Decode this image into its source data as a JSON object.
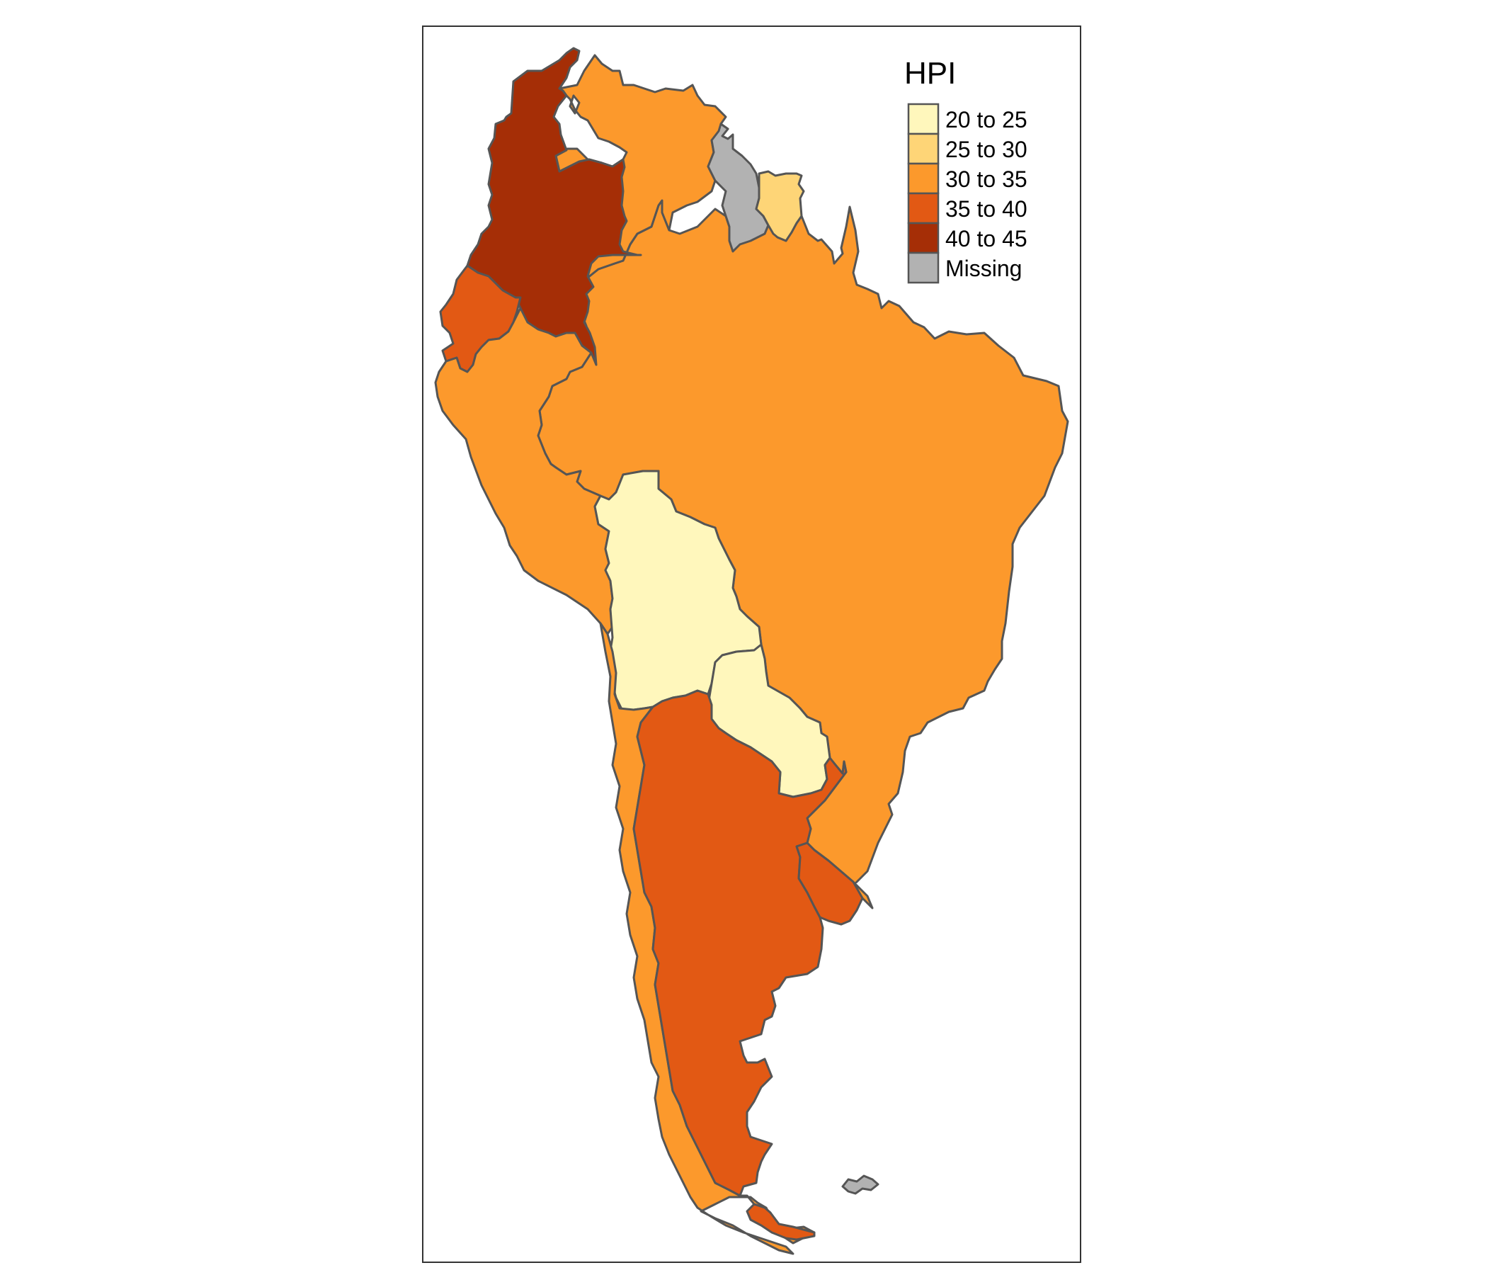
{
  "legend": {
    "title": "HPI",
    "items": [
      {
        "label": "20 to 25",
        "color": "#FFF7BC"
      },
      {
        "label": "25 to 30",
        "color": "#FED577"
      },
      {
        "label": "30 to 35",
        "color": "#FC992C"
      },
      {
        "label": "35 to 40",
        "color": "#E25914"
      },
      {
        "label": "40 to 45",
        "color": "#A52E06"
      },
      {
        "label": "Missing",
        "color": "#B2B2B2"
      }
    ]
  },
  "countries": [
    {
      "name": "Colombia",
      "class": "40 to 45"
    },
    {
      "name": "Venezuela",
      "class": "30 to 35"
    },
    {
      "name": "Guyana",
      "class": "Missing"
    },
    {
      "name": "Suriname",
      "class": "25 to 30"
    },
    {
      "name": "Brazil",
      "class": "30 to 35"
    },
    {
      "name": "Ecuador",
      "class": "35 to 40"
    },
    {
      "name": "Peru",
      "class": "30 to 35"
    },
    {
      "name": "Bolivia",
      "class": "20 to 25"
    },
    {
      "name": "Paraguay",
      "class": "20 to 25"
    },
    {
      "name": "Chile",
      "class": "30 to 35"
    },
    {
      "name": "Argentina",
      "class": "35 to 40"
    },
    {
      "name": "Uruguay",
      "class": "35 to 40"
    },
    {
      "name": "Falkland Islands",
      "class": "Missing"
    }
  ]
}
